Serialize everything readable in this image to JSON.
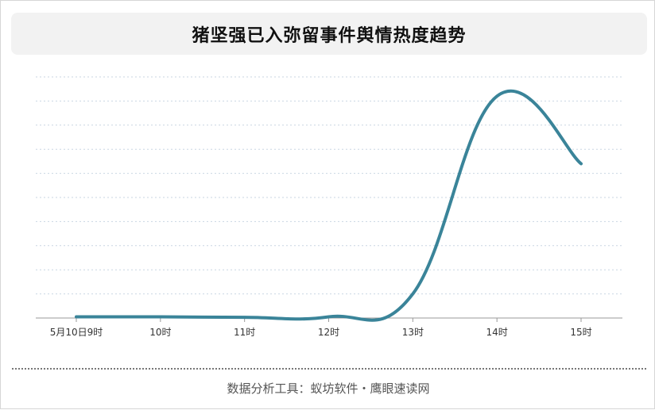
{
  "chart_data": {
    "type": "line",
    "title": "猪坚强已入弥留事件舆情热度趋势",
    "categories": [
      "5月10日9时",
      "10时",
      "11时",
      "12时",
      "13时",
      "14时",
      "15时"
    ],
    "series": [
      {
        "values": [
          0.5,
          0.5,
          0.3,
          0.5,
          10,
          92,
          64
        ],
        "color": "#3a8499"
      }
    ],
    "ylim": [
      0,
      100
    ],
    "grid": true,
    "legend": "none"
  },
  "footer": {
    "source": "数据分析工具：蚁坊软件・鹰眼速读网"
  }
}
